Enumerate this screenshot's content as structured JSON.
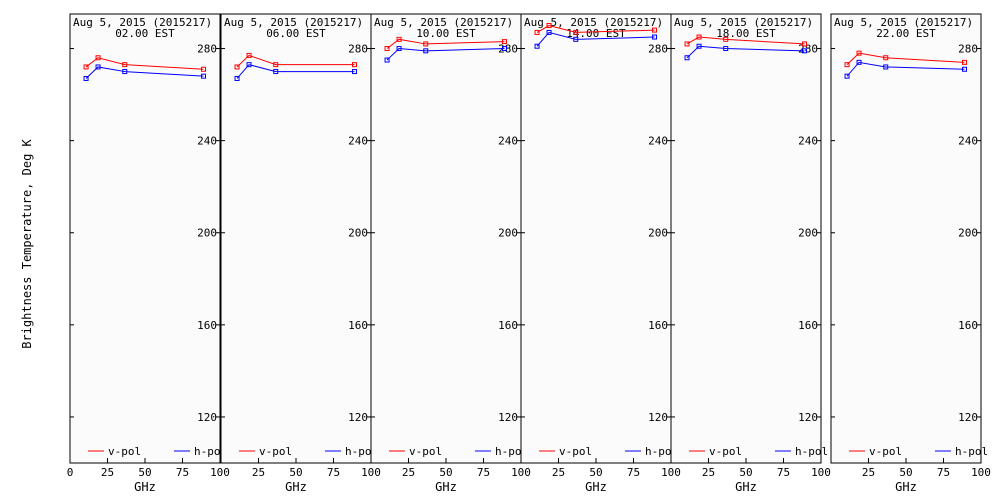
{
  "figure": {
    "ylabel": "Brightness Temperature, Deg K",
    "xlabel": "GHz",
    "legend_position": "bottom"
  },
  "colors": {
    "v_pol": "#ff0000",
    "h_pol": "#0000ff",
    "plot_bg": "#fbfbfb",
    "axis": "#000000"
  },
  "chart_data": [
    {
      "type": "line",
      "title": "Aug  5, 2015 (2015217)",
      "subtitle": "02.00 EST",
      "xlabel": "GHz",
      "ylabel": "Brightness Temperature, Deg K",
      "xlim": [
        0,
        100
      ],
      "ylim": [
        100,
        295
      ],
      "x_ticks": [
        "0",
        "25",
        "50",
        "75",
        "100"
      ],
      "y_ticks": [
        "120",
        "160",
        "200",
        "240",
        "280"
      ],
      "x": [
        10.7,
        18.7,
        36.5,
        89.0
      ],
      "series": [
        {
          "name": "v-pol",
          "values": [
            272,
            276,
            273,
            271
          ]
        },
        {
          "name": "h-pol",
          "values": [
            267,
            272,
            270,
            268
          ]
        }
      ],
      "grid": false
    },
    {
      "type": "line",
      "title": "Aug  5, 2015 (2015217)",
      "subtitle": "06.00 EST",
      "xlabel": "GHz",
      "xlim": [
        0,
        100
      ],
      "ylim": [
        100,
        295
      ],
      "x_ticks": [
        "25",
        "50",
        "75",
        "100"
      ],
      "y_ticks": [
        "120",
        "160",
        "200",
        "240",
        "280"
      ],
      "x": [
        10.7,
        18.7,
        36.5,
        89.0
      ],
      "series": [
        {
          "name": "v-pol",
          "values": [
            272,
            277,
            273,
            273
          ]
        },
        {
          "name": "h-pol",
          "values": [
            267,
            273,
            270,
            270
          ]
        }
      ],
      "grid": false
    },
    {
      "type": "line",
      "title": "Aug  5, 2015 (2015217)",
      "subtitle": "10.00 EST",
      "xlabel": "GHz",
      "xlim": [
        0,
        100
      ],
      "ylim": [
        100,
        295
      ],
      "x_ticks": [
        "25",
        "50",
        "75",
        "100"
      ],
      "y_ticks": [
        "120",
        "160",
        "200",
        "240",
        "280"
      ],
      "x": [
        10.7,
        18.7,
        36.5,
        89.0
      ],
      "series": [
        {
          "name": "v-pol",
          "values": [
            280,
            284,
            282,
            283
          ]
        },
        {
          "name": "h-pol",
          "values": [
            275,
            280,
            279,
            280
          ]
        }
      ],
      "grid": false
    },
    {
      "type": "line",
      "title": "Aug  5, 2015 (2015217)",
      "subtitle": "14.00 EST",
      "xlabel": "GHz",
      "xlim": [
        0,
        100
      ],
      "ylim": [
        100,
        295
      ],
      "x_ticks": [
        "25",
        "50",
        "75",
        "100"
      ],
      "y_ticks": [
        "120",
        "160",
        "200",
        "240",
        "280"
      ],
      "x": [
        10.7,
        18.7,
        36.5,
        89.0
      ],
      "series": [
        {
          "name": "v-pol",
          "values": [
            287,
            290,
            287,
            288
          ]
        },
        {
          "name": "h-pol",
          "values": [
            281,
            287,
            284,
            285
          ]
        }
      ],
      "grid": false
    },
    {
      "type": "line",
      "title": "Aug  5, 2015 (2015217)",
      "subtitle": "18.00 EST",
      "xlabel": "GHz",
      "xlim": [
        0,
        100
      ],
      "ylim": [
        100,
        295
      ],
      "x_ticks": [
        "25",
        "50",
        "75",
        "100"
      ],
      "y_ticks": [
        "120",
        "160",
        "200",
        "240",
        "280"
      ],
      "x": [
        10.7,
        18.7,
        36.5,
        89.0
      ],
      "series": [
        {
          "name": "v-pol",
          "values": [
            282,
            285,
            284,
            282
          ]
        },
        {
          "name": "h-pol",
          "values": [
            276,
            281,
            280,
            279
          ]
        }
      ],
      "grid": false
    },
    {
      "type": "line",
      "title": "Aug  5, 2015 (2015217)",
      "subtitle": "22.00 EST",
      "xlabel": "GHz",
      "xlim": [
        0,
        100
      ],
      "ylim": [
        100,
        295
      ],
      "x_ticks": [
        "25",
        "50",
        "75",
        "100"
      ],
      "y_ticks": [
        "120",
        "160",
        "200",
        "240",
        "280"
      ],
      "x": [
        10.7,
        18.7,
        36.5,
        89.0
      ],
      "series": [
        {
          "name": "v-pol",
          "values": [
            273,
            278,
            276,
            274
          ]
        },
        {
          "name": "h-pol",
          "values": [
            268,
            274,
            272,
            271
          ]
        }
      ],
      "grid": false
    }
  ]
}
